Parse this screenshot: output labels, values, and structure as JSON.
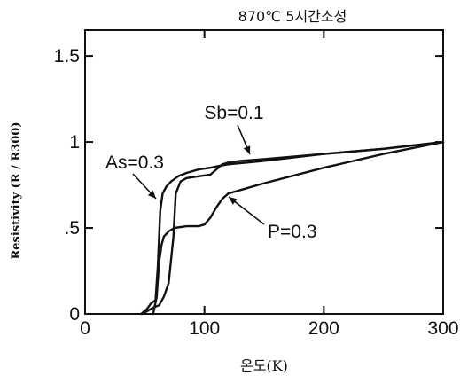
{
  "chart_data": {
    "type": "line",
    "title": "870℃ 5시간소성",
    "xlabel": "온도(K)",
    "ylabel": "Resistivity (R / R300)",
    "xlim": [
      0,
      300
    ],
    "ylim": [
      0,
      1.65
    ],
    "xticks": [
      0,
      100,
      200,
      300
    ],
    "xtick_labels": [
      "0",
      "100",
      "200",
      "300"
    ],
    "yticks": [
      0,
      0.5,
      1,
      1.5
    ],
    "ytick_labels": [
      "0",
      ".5",
      "1",
      "1.5"
    ],
    "grid": false,
    "series": [
      {
        "name": "As=0.3",
        "x": [
          47,
          52,
          55,
          57,
          59,
          61,
          63,
          65,
          68,
          72,
          78,
          85,
          95,
          105,
          112,
          120,
          150,
          200,
          250,
          300
        ],
        "y": [
          0.0,
          0.03,
          0.06,
          0.07,
          0.08,
          0.28,
          0.6,
          0.7,
          0.74,
          0.77,
          0.8,
          0.82,
          0.84,
          0.85,
          0.86,
          0.87,
          0.89,
          0.93,
          0.96,
          1.0
        ]
      },
      {
        "name": "Sb=0.1",
        "x": [
          48,
          53,
          58,
          62,
          66,
          70,
          74,
          76,
          80,
          85,
          95,
          105,
          110,
          115,
          120,
          130,
          150,
          200,
          250,
          300
        ],
        "y": [
          0.0,
          0.02,
          0.04,
          0.05,
          0.1,
          0.18,
          0.45,
          0.7,
          0.77,
          0.79,
          0.8,
          0.81,
          0.84,
          0.87,
          0.88,
          0.89,
          0.9,
          0.93,
          0.96,
          1.0
        ]
      },
      {
        "name": "P=0.3",
        "x": [
          57,
          60,
          62,
          64,
          66,
          70,
          75,
          85,
          95,
          100,
          105,
          110,
          115,
          120,
          150,
          200,
          250,
          300
        ],
        "y": [
          0.0,
          0.1,
          0.3,
          0.4,
          0.45,
          0.48,
          0.5,
          0.51,
          0.51,
          0.52,
          0.56,
          0.62,
          0.67,
          0.7,
          0.76,
          0.85,
          0.93,
          1.0
        ]
      }
    ],
    "annotations": [
      {
        "text": "As=0.3",
        "series": "As=0.3"
      },
      {
        "text": "Sb=0.1",
        "series": "Sb=0.1"
      },
      {
        "text": "P=0.3",
        "series": "P=0.3"
      }
    ]
  }
}
